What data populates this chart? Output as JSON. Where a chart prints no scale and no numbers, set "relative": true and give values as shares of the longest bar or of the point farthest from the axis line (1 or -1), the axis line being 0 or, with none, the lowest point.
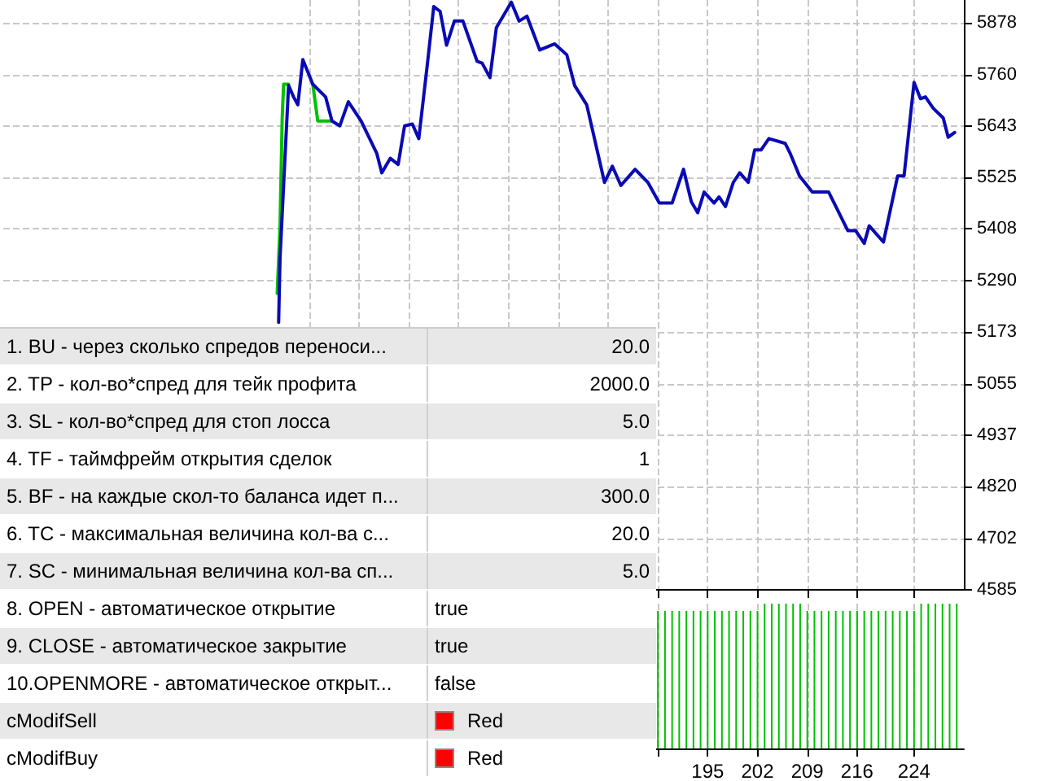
{
  "chart_data": [
    {
      "type": "line",
      "xlim": [
        96,
        231
      ],
      "ylim": [
        4585,
        5930
      ],
      "xticks": [
        {
          "value": 139,
          "label": null
        },
        {
          "value": 146,
          "label": null
        },
        {
          "value": 153,
          "label": null
        },
        {
          "value": 160,
          "label": null
        },
        {
          "value": 167,
          "label": null
        },
        {
          "value": 174,
          "label": null
        },
        {
          "value": 181,
          "label": null
        },
        {
          "value": 188,
          "label": null
        },
        195,
        202,
        209,
        216,
        224
      ],
      "yticks": [
        4585,
        4702,
        4820,
        4937,
        5055,
        5173,
        5290,
        5408,
        5525,
        5643,
        5760,
        5878
      ],
      "grid": true,
      "tick_labels": "y",
      "marker": "none",
      "line_style": "solid",
      "series": [
        {
          "color": "#00c000",
          "x": [
            134.5,
            134.9,
            135.2,
            135.4,
            136.1,
            138,
            139.5,
            140.2,
            142.0
          ],
          "values": [
            5261,
            5415,
            5661,
            5738,
            5738,
            null,
            5738,
            5654,
            5654
          ]
        },
        {
          "color": "#0a0ab4",
          "x": [
            134.7,
            134.9,
            135.6,
            136.1,
            136.8,
            137.4,
            138.1,
            139.5,
            141.3,
            142.2,
            143.3,
            144.5,
            146.3,
            148.5,
            149.2,
            150.4,
            151.5,
            152.4,
            153.5,
            154.4,
            155.6,
            156.5,
            157.4,
            158.3,
            159.4,
            160.6,
            162.6,
            163.3,
            164.4,
            165.3,
            167.4,
            168.5,
            169.6,
            171.4,
            173.5,
            175.2,
            176.3,
            178.0,
            180.5,
            181.6,
            182.8,
            184.8,
            186.6,
            188.2,
            190.0,
            191.6,
            192.7,
            193.6,
            194.5,
            195.9,
            196.6,
            197.5,
            198.6,
            199.5,
            200.7,
            201.6,
            202.5,
            203.6,
            205.9,
            206.6,
            207.9,
            209.7,
            212.0,
            214.7,
            215.8,
            217.0,
            217.7,
            219.7,
            221.7,
            222.6,
            224.0,
            224.9,
            225.6,
            226.7,
            228.1,
            228.8,
            229.7
          ],
          "values": [
            5195,
            5342,
            5573,
            5735,
            5709,
            5691,
            5794,
            5738,
            5709,
            5654,
            5643,
            5698,
            5654,
            5580,
            5536,
            5569,
            5555,
            5643,
            5647,
            5614,
            5783,
            5915,
            5904,
            5827,
            5882,
            5882,
            5790,
            5786,
            5753,
            5867,
            5925,
            5882,
            5893,
            5816,
            5830,
            5805,
            5735,
            5691,
            5514,
            5551,
            5507,
            5544,
            5514,
            5467,
            5467,
            5544,
            5470,
            5445,
            5492,
            5467,
            5481,
            5459,
            5514,
            5536,
            5514,
            5588,
            5588,
            5614,
            5603,
            5580,
            5529,
            5492,
            5492,
            5404,
            5404,
            5375,
            5415,
            5378,
            5529,
            5529,
            5742,
            5705,
            5709,
            5683,
            5661,
            5617,
            5628
          ]
        }
      ]
    },
    {
      "type": "bar",
      "relative": true,
      "xlim": [
        96,
        231
      ],
      "xticks": [
        {
          "value": 139,
          "label": null
        },
        {
          "value": 146,
          "label": null
        },
        {
          "value": 153,
          "label": null
        },
        {
          "value": 160,
          "label": null
        },
        {
          "value": 167,
          "label": null
        },
        {
          "value": 174,
          "label": null
        },
        {
          "value": 181,
          "label": null
        },
        {
          "value": 188,
          "label": null
        },
        195,
        202,
        209,
        216,
        224
      ],
      "grid": "x",
      "tick_labels": "x",
      "color": "#00c000",
      "x": [
        188,
        189,
        190,
        191,
        192,
        193,
        194,
        195,
        196,
        197,
        198,
        199,
        200,
        201,
        202,
        203,
        204,
        205,
        206,
        207,
        208,
        209,
        210,
        211,
        212,
        213,
        214,
        215,
        216,
        217,
        218,
        219,
        220,
        221,
        222,
        223,
        224,
        225,
        226,
        227,
        228,
        229,
        230
      ],
      "values": [
        0.95,
        0.95,
        0.95,
        0.95,
        0.95,
        0.95,
        0.95,
        0.95,
        0.95,
        0.95,
        0.95,
        0.95,
        0.95,
        0.95,
        0.95,
        1,
        1,
        1,
        1,
        1,
        1,
        0.95,
        0.95,
        0.95,
        0.95,
        0.95,
        0.95,
        0.95,
        0.95,
        0.95,
        0.95,
        0.95,
        0.95,
        0.95,
        0.95,
        0.95,
        0.95,
        1,
        1,
        1,
        1,
        1,
        1
      ]
    },
    {
      "type": "other",
      "annotations": [
        "1. BU - через сколько спредов переноси...",
        "20.0",
        "2. TP - кол-во*спред для тейк профита",
        "2000.0",
        "3. SL - кол-во*спред для стоп лосса",
        "5.0",
        "4. TF - таймфрейм открытия сделок",
        "1",
        "5. BF - на каждые скол-то баланса идет п...",
        "300.0",
        "6. TC - максимальная величина кол-ва с...",
        "20.0",
        "7. SC - минимальная величина кол-ва сп...",
        "5.0",
        "8. OPEN - автоматическое открытие",
        "true",
        "9. CLOSE - автоматическое закрытие",
        "true",
        "10.OPENMORE - автоматическое открыт...",
        "false",
        "cModifSell",
        "Red",
        "cModifBuy",
        "Red"
      ],
      "colors": [
        null,
        null,
        null,
        null,
        null,
        null,
        null,
        null,
        null,
        null,
        "#ff0000",
        "#ff0000"
      ]
    }
  ]
}
